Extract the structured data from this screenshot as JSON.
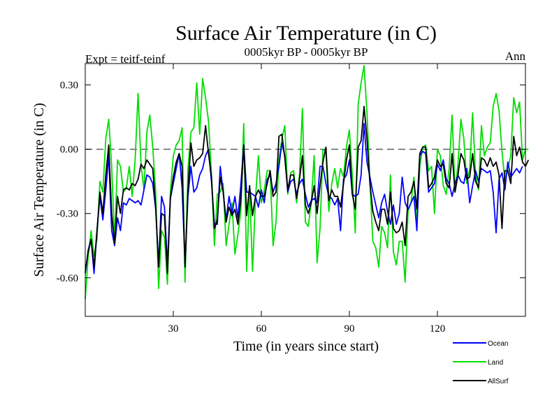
{
  "chart_data": {
    "type": "line",
    "title": "Surface Air Temperature (in C)",
    "subtitle": "0005kyr BP - 0005kyr BP",
    "left_note": "Expt = teitf-teinf",
    "right_note": "Ann",
    "xlabel": "Time (in years since start)",
    "ylabel": "Surface Air Temperature (in C)",
    "xlim": [
      0,
      150
    ],
    "ylim": [
      -0.78,
      0.4
    ],
    "x_ticks": [
      30,
      60,
      90,
      120
    ],
    "y_ticks": [
      0.3,
      0.0,
      -0.3,
      -0.6
    ],
    "y_tick_labels": [
      "0.30",
      "0.00",
      "-0.30",
      "-0.60"
    ],
    "reference_line": 0.0,
    "legend": {
      "placement": "bottom-right",
      "entries": [
        "Ocean",
        "Land",
        "AllSurf"
      ]
    },
    "series": [
      {
        "name": "Ocean",
        "color": "#0000ff",
        "values": [
          -0.58,
          -0.47,
          -0.42,
          -0.58,
          -0.38,
          -0.22,
          -0.33,
          -0.19,
          -0.03,
          -0.38,
          -0.45,
          -0.32,
          -0.38,
          -0.25,
          -0.26,
          -0.23,
          -0.24,
          -0.25,
          -0.24,
          -0.26,
          -0.19,
          -0.12,
          -0.13,
          -0.16,
          -0.28,
          -0.54,
          -0.22,
          -0.27,
          -0.54,
          -0.23,
          -0.16,
          -0.09,
          -0.02,
          -0.18,
          -0.54,
          -0.22,
          -0.08,
          -0.2,
          -0.18,
          -0.12,
          -0.09,
          -0.03,
          0.0,
          -0.15,
          -0.35,
          -0.35,
          -0.08,
          -0.2,
          -0.33,
          -0.22,
          -0.3,
          -0.22,
          -0.32,
          -0.17,
          0.02,
          -0.2,
          -0.2,
          -0.21,
          -0.22,
          -0.27,
          -0.19,
          -0.25,
          -0.14,
          -0.12,
          -0.2,
          -0.16,
          -0.08,
          0.03,
          -0.03,
          -0.2,
          -0.15,
          -0.14,
          -0.21,
          -0.16,
          -0.14,
          -0.21,
          -0.27,
          -0.24,
          -0.23,
          -0.25,
          -0.08,
          -0.08,
          -0.16,
          -0.22,
          -0.23,
          -0.26,
          -0.23,
          -0.38,
          -0.14,
          -0.12,
          -0.05,
          -0.21,
          -0.22,
          -0.21,
          -0.12,
          0.12,
          -0.06,
          -0.13,
          -0.2,
          -0.26,
          -0.32,
          -0.25,
          -0.21,
          -0.29,
          -0.35,
          -0.26,
          -0.35,
          -0.3,
          -0.13,
          -0.25,
          -0.28,
          -0.25,
          -0.22,
          -0.38,
          -0.03,
          -0.01,
          -0.02,
          -0.2,
          -0.18,
          -0.16,
          -0.07,
          -0.1,
          -0.05,
          -0.14,
          -0.16,
          -0.22,
          -0.16,
          -0.12,
          -0.15,
          -0.16,
          -0.09,
          -0.25,
          -0.17,
          -0.1,
          -0.15,
          -0.09,
          -0.1,
          -0.11,
          -0.1,
          -0.2,
          -0.39,
          -0.14,
          -0.11,
          -0.19,
          -0.06,
          -0.13,
          -0.11,
          -0.09,
          -0.11,
          -0.08
        ]
      },
      {
        "name": "Land",
        "color": "#00dd00",
        "values": [
          -0.7,
          -0.5,
          -0.38,
          -0.5,
          -0.42,
          -0.15,
          -0.2,
          0.05,
          0.14,
          -0.08,
          -0.43,
          -0.05,
          -0.08,
          -0.2,
          -0.18,
          -0.08,
          -0.22,
          -0.05,
          0.26,
          -0.07,
          -0.19,
          0.08,
          0.16,
          0.01,
          -0.2,
          -0.65,
          -0.38,
          -0.41,
          -0.63,
          -0.2,
          -0.03,
          0.02,
          0.04,
          0.1,
          -0.62,
          -0.09,
          0.08,
          0.1,
          0.31,
          0.07,
          0.33,
          0.24,
          0.13,
          -0.11,
          -0.45,
          -0.21,
          -0.2,
          -0.16,
          -0.45,
          -0.35,
          -0.25,
          -0.49,
          -0.4,
          -0.29,
          0.12,
          -0.57,
          -0.17,
          -0.57,
          -0.23,
          -0.03,
          -0.25,
          -0.19,
          -0.1,
          -0.1,
          -0.45,
          -0.34,
          -0.05,
          0.05,
          0.11,
          -0.21,
          -0.11,
          -0.1,
          -0.25,
          -0.12,
          0.19,
          -0.34,
          -0.36,
          -0.25,
          -0.03,
          -0.53,
          -0.37,
          0.0,
          -0.01,
          -0.29,
          -0.16,
          -0.09,
          -0.18,
          -0.09,
          -0.13,
          0.01,
          0.09,
          -0.12,
          -0.39,
          0.21,
          0.31,
          0.39,
          0.17,
          -0.15,
          -0.43,
          -0.46,
          -0.55,
          -0.36,
          -0.39,
          -0.46,
          -0.12,
          -0.48,
          -0.54,
          -0.43,
          -0.43,
          -0.62,
          -0.29,
          -0.25,
          -0.13,
          -0.35,
          -0.08,
          0.01,
          0.02,
          -0.1,
          -0.08,
          -0.3,
          0.0,
          -0.03,
          -0.17,
          -0.21,
          -0.09,
          0.16,
          -0.2,
          -0.07,
          0.14,
          0.05,
          -0.16,
          -0.09,
          0.17,
          -0.12,
          -0.19,
          0.11,
          -0.03,
          0.01,
          0.03,
          0.2,
          0.26,
          0.18,
          -0.01,
          -0.15,
          -0.09,
          -0.03,
          0.24,
          0.17,
          0.22,
          -0.05,
          0.0,
          0.0
        ]
      },
      {
        "name": "AllSurf",
        "color": "#000000",
        "values": [
          -0.57,
          -0.48,
          -0.42,
          -0.55,
          -0.38,
          -0.2,
          -0.3,
          -0.12,
          0.02,
          -0.3,
          -0.44,
          -0.22,
          -0.3,
          -0.19,
          -0.18,
          -0.19,
          -0.16,
          -0.17,
          -0.14,
          -0.07,
          -0.09,
          -0.05,
          -0.07,
          -0.09,
          -0.27,
          -0.55,
          -0.3,
          -0.31,
          -0.58,
          -0.23,
          -0.13,
          -0.06,
          -0.02,
          -0.08,
          -0.55,
          -0.19,
          0.03,
          -0.08,
          -0.05,
          -0.04,
          -0.02,
          0.11,
          -0.02,
          -0.13,
          -0.37,
          -0.33,
          -0.13,
          -0.2,
          -0.34,
          -0.27,
          -0.31,
          -0.28,
          -0.35,
          -0.24,
          0.02,
          -0.31,
          -0.17,
          -0.31,
          -0.22,
          -0.19,
          -0.22,
          -0.22,
          -0.16,
          -0.1,
          -0.22,
          -0.2,
          0.06,
          0.07,
          -0.04,
          -0.19,
          -0.12,
          -0.12,
          -0.23,
          -0.14,
          -0.03,
          -0.26,
          -0.3,
          -0.25,
          -0.17,
          -0.3,
          -0.17,
          -0.06,
          0.01,
          -0.24,
          -0.19,
          -0.22,
          -0.22,
          -0.27,
          -0.16,
          -0.05,
          0.02,
          -0.21,
          -0.28,
          0.01,
          0.04,
          0.2,
          0.05,
          -0.16,
          -0.29,
          -0.34,
          -0.38,
          -0.28,
          -0.28,
          -0.35,
          -0.2,
          -0.37,
          -0.39,
          -0.38,
          -0.34,
          -0.45,
          -0.22,
          -0.2,
          -0.15,
          -0.28,
          -0.02,
          0.01,
          0.01,
          -0.18,
          -0.16,
          -0.13,
          -0.05,
          -0.08,
          -0.07,
          -0.16,
          -0.18,
          -0.02,
          -0.2,
          -0.12,
          -0.02,
          -0.05,
          -0.14,
          -0.13,
          -0.02,
          -0.15,
          -0.18,
          -0.04,
          -0.05,
          -0.08,
          -0.04,
          -0.08,
          -0.06,
          -0.12,
          -0.37,
          -0.1,
          -0.1,
          -0.16,
          0.06,
          -0.03,
          0.01,
          -0.06,
          -0.08,
          -0.05
        ]
      }
    ]
  }
}
